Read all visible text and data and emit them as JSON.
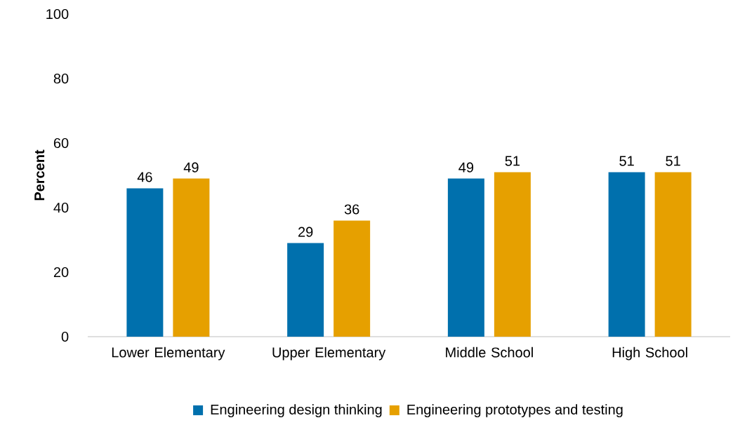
{
  "chart_data": {
    "type": "bar",
    "ylabel": "Percent",
    "categories": [
      "Lower Elementary",
      "Upper Elementary",
      "Middle School",
      "High School"
    ],
    "series": [
      {
        "name": "Engineering design thinking",
        "color": "#0070ad",
        "values": [
          46,
          29,
          49,
          51
        ]
      },
      {
        "name": "Engineering prototypes and testing",
        "color": "#e6a000",
        "values": [
          49,
          36,
          51,
          51
        ]
      }
    ],
    "ylim": [
      0,
      100
    ],
    "yticks": [
      0,
      20,
      40,
      60,
      80,
      100
    ],
    "data_labels": true,
    "legend": "bottom",
    "grid": false
  }
}
